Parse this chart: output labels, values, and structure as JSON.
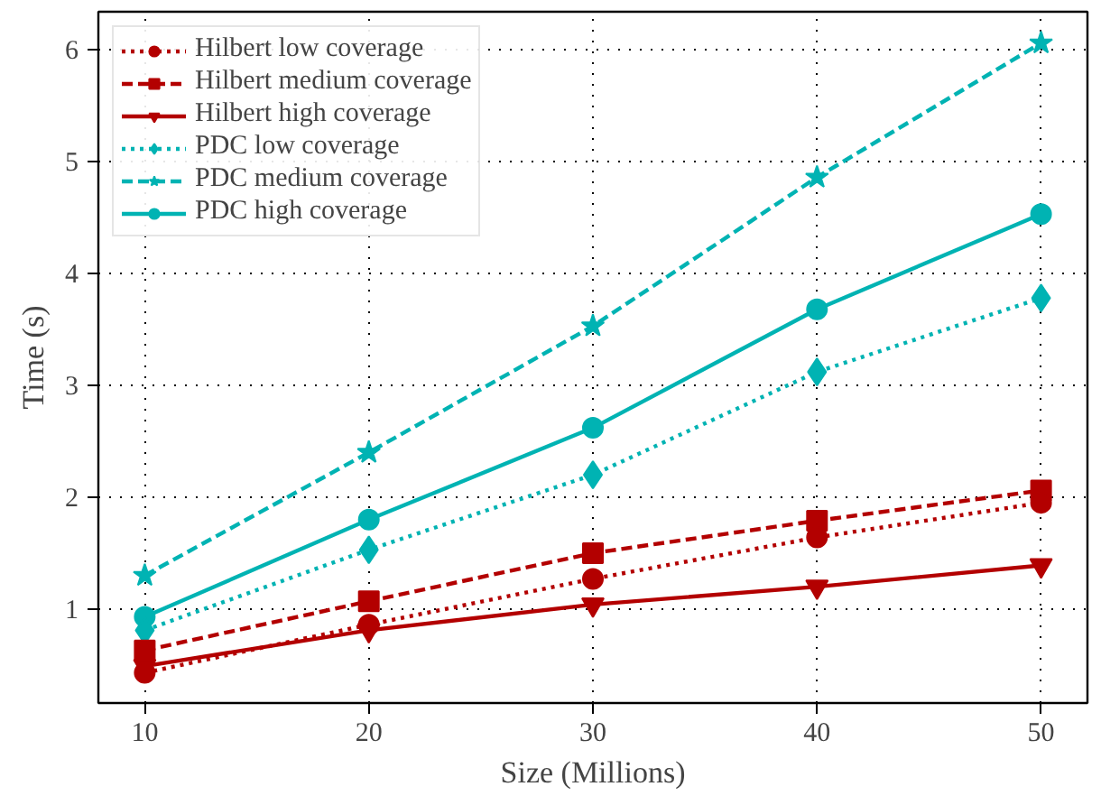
{
  "chart_data": {
    "type": "line",
    "xlabel": "Size (Millions)",
    "ylabel": "Time (s)",
    "x": [
      10,
      20,
      30,
      40,
      50
    ],
    "xlim": [
      7.93,
      52.07
    ],
    "xticks": [
      10,
      20,
      30,
      40,
      50
    ],
    "ylim": [
      0.16,
      6.34
    ],
    "yticks": [
      1,
      2,
      3,
      4,
      5,
      6
    ],
    "grid": true,
    "legend": "top left",
    "series": [
      {
        "name": "Hilbert low coverage",
        "color": "#b30000",
        "marker": "circle",
        "line_style": "dotted",
        "values": [
          0.43,
          0.86,
          1.27,
          1.64,
          1.95
        ]
      },
      {
        "name": "Hilbert medium coverage",
        "color": "#b30000",
        "marker": "square",
        "line_style": "dashed",
        "values": [
          0.63,
          1.07,
          1.5,
          1.79,
          2.06
        ]
      },
      {
        "name": "Hilbert high coverage",
        "color": "#b30000",
        "marker": "triangle",
        "line_style": "solid",
        "values": [
          0.49,
          0.81,
          1.04,
          1.2,
          1.39
        ]
      },
      {
        "name": "PDC low coverage",
        "color": "#00b3b3",
        "marker": "diamond",
        "line_style": "dotted",
        "values": [
          0.81,
          1.53,
          2.2,
          3.12,
          3.78
        ]
      },
      {
        "name": "PDC medium coverage",
        "color": "#00b3b3",
        "marker": "star",
        "line_style": "dashed",
        "values": [
          1.3,
          2.4,
          3.53,
          4.86,
          6.06
        ]
      },
      {
        "name": "PDC high coverage",
        "color": "#00b3b3",
        "marker": "circle",
        "line_style": "solid",
        "values": [
          0.93,
          1.8,
          2.62,
          3.68,
          4.53
        ]
      }
    ]
  }
}
